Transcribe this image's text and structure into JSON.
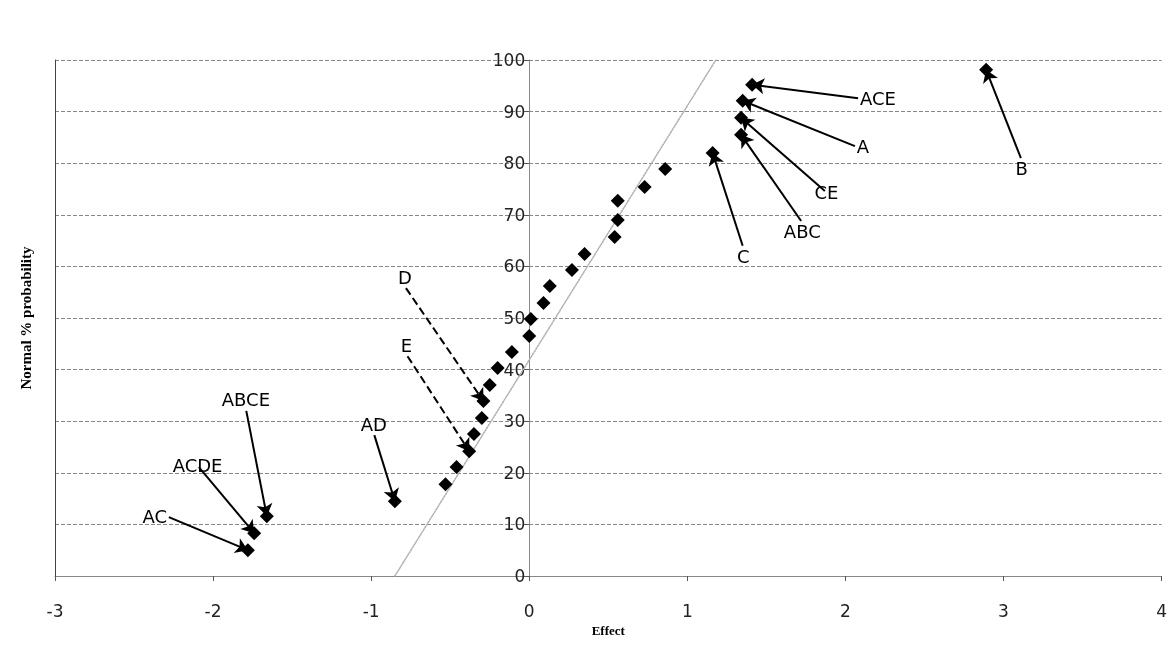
{
  "chart_data": {
    "type": "scatter",
    "xlabel": "Effect",
    "ylabel": "Normal % probability",
    "series": [
      {
        "color": "#000000",
        "x": [
          -1.78,
          -1.74,
          -1.66,
          -0.85,
          -0.53,
          -0.46,
          -0.38,
          -0.35,
          -0.3,
          -0.29,
          -0.25,
          -0.2,
          -0.11,
          0,
          0.01,
          0.09,
          0.13,
          0.27,
          0.35,
          0.54,
          0.56,
          0.56,
          0.73,
          0.86,
          1.16,
          1.34,
          1.34,
          1.35,
          1.41,
          2.89
        ],
        "values": [
          5,
          8.3,
          11.6,
          14.5,
          17.8,
          21.1,
          24.2,
          27.5,
          30.6,
          33.9,
          37,
          40.3,
          43.4,
          46.5,
          49.8,
          52.9,
          56.2,
          59.3,
          62.4,
          65.7,
          69,
          72.7,
          75.4,
          78.9,
          82,
          85.5,
          88.8,
          92.1,
          95.2,
          98.1
        ]
      },
      {
        "type": "line",
        "color": "#b0b0b0",
        "line_style": "dotted",
        "marker": "none",
        "x": [
          -0.85,
          1.18
        ],
        "values": [
          0,
          100
        ]
      }
    ],
    "marker": "diamond",
    "xlim": [
      -3,
      4
    ],
    "xticks": [
      -3,
      -2,
      -1,
      0,
      1,
      2,
      3,
      4
    ],
    "ylim": [
      0,
      100
    ],
    "yticks": [
      0,
      10,
      20,
      30,
      40,
      50,
      60,
      70,
      80,
      90,
      100
    ],
    "grid": "y",
    "annotations": [
      {
        "text": "ACE",
        "x": 1.41,
        "y": 95.2
      },
      {
        "text": "A",
        "x": 1.35,
        "y": 92.1
      },
      {
        "text": "CE",
        "x": 1.34,
        "y": 88.8
      },
      {
        "text": "ABC",
        "x": 1.34,
        "y": 85.5
      },
      {
        "text": "C",
        "x": 1.16,
        "y": 82
      },
      {
        "text": "B",
        "x": 2.89,
        "y": 98.1
      },
      {
        "text": "D",
        "x": -0.29,
        "y": 33.9
      },
      {
        "text": "E",
        "x": -0.38,
        "y": 24.2
      },
      {
        "text": "AD",
        "x": -0.85,
        "y": 14.5
      },
      {
        "text": "ABCE",
        "x": -1.66,
        "y": 11.6
      },
      {
        "text": "ACDE",
        "x": -1.74,
        "y": 8.3
      },
      {
        "text": "AC",
        "x": -1.78,
        "y": 5
      }
    ]
  }
}
